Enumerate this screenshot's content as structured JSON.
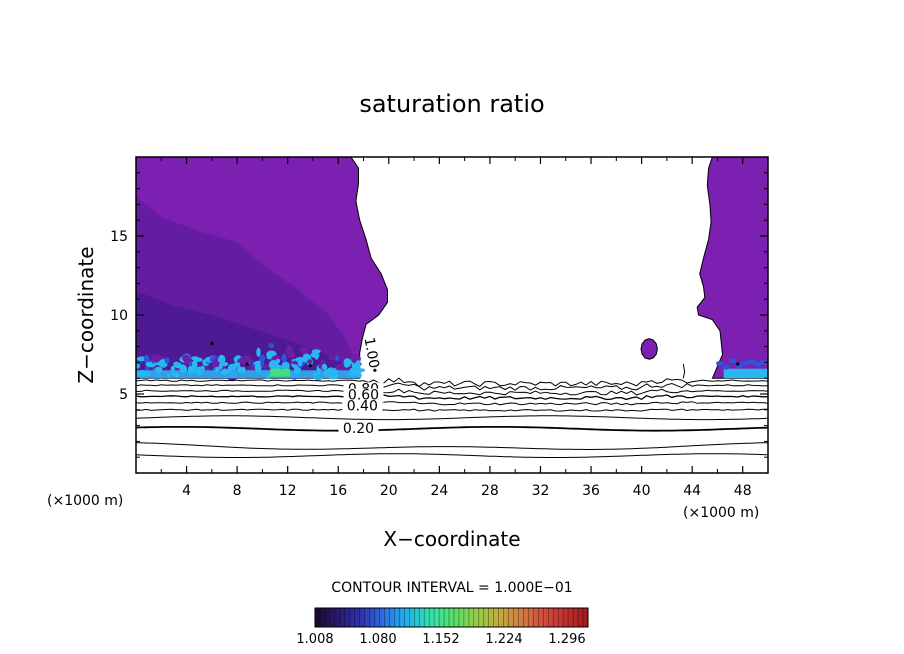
{
  "chart_data": {
    "type": "contour",
    "title": "saturation ratio",
    "xlabel": "X−coordinate",
    "ylabel": "Z−coordinate",
    "x_unit": "(×1000 m)",
    "x_unit_right": "(×1000 m)",
    "xlim": [
      0,
      50
    ],
    "ylim": [
      0,
      20
    ],
    "x_ticks": [
      4,
      8,
      12,
      16,
      20,
      24,
      28,
      32,
      36,
      40,
      44,
      48
    ],
    "x_tick_labels": [
      "4",
      "8",
      "12",
      "16",
      "20",
      "24",
      "28",
      "32",
      "36",
      "40",
      "44",
      "48"
    ],
    "y_ticks": [
      5,
      10,
      15
    ],
    "y_tick_labels": [
      "5",
      "10",
      "15"
    ],
    "contour_levels": [
      0.2,
      0.3,
      0.4,
      0.5,
      0.6,
      0.7,
      0.8,
      0.9,
      1.0
    ],
    "contour_labels": [
      {
        "text": "1.00",
        "x": 18.6,
        "z": 7.6
      },
      {
        "text": "0.80",
        "x": 18.0,
        "z": 5.3
      },
      {
        "text": "0.60",
        "x": 18.0,
        "z": 4.9
      },
      {
        "text": "0.40",
        "x": 17.9,
        "z": 4.2
      },
      {
        "text": "0.20",
        "x": 17.6,
        "z": 2.8
      }
    ],
    "contour_interval_text": "CONTOUR INTERVAL = 1.000E−01",
    "colorbar": {
      "tick_labels": [
        "1.008",
        "1.080",
        "1.152",
        "1.224",
        "1.296"
      ],
      "min": 1.008,
      "max": 1.32,
      "colors": [
        "#1a0a2e",
        "#2b1a6e",
        "#3030b0",
        "#2f6fe0",
        "#1fb0ef",
        "#30e0b0",
        "#50e070",
        "#90d048",
        "#c0b040",
        "#d08040",
        "#d05040",
        "#c03030",
        "#a01818"
      ]
    },
    "colors": {
      "supersaturated_fill": "#7b20b0",
      "upper_fill": "#6c1ea6",
      "mid_fill": "#5c1c9c",
      "low_fill": "#4a1a92",
      "band_cyan": "#29b7f1",
      "band_blue": "#2c54e0",
      "band_green": "#3de07a"
    }
  }
}
